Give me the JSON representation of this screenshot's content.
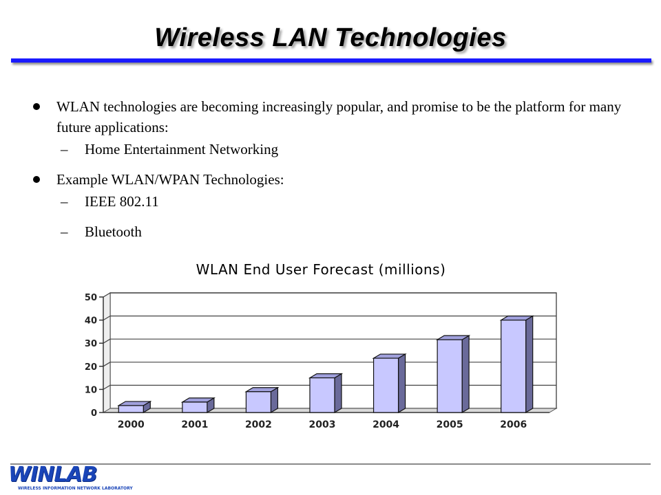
{
  "slide": {
    "title": "Wireless LAN Technologies"
  },
  "bullets": [
    {
      "text": "WLAN technologies are becoming increasingly popular, and promise to be the platform for many future applications:",
      "subitems": [
        "Home Entertainment Networking"
      ]
    },
    {
      "text": "Example WLAN/WPAN Technologies:",
      "subitems": [
        "IEEE 802.11",
        "Bluetooth"
      ]
    }
  ],
  "sub_dash": "–",
  "chart_data": {
    "type": "bar",
    "title": "WLAN End User Forecast (millions)",
    "categories": [
      "2000",
      "2001",
      "2002",
      "2003",
      "2004",
      "2005",
      "2006"
    ],
    "values": [
      3,
      4.5,
      9,
      15,
      23.5,
      31.5,
      40
    ],
    "ylim": [
      0,
      50
    ],
    "yticks": [
      "0",
      "10",
      "20",
      "30",
      "40",
      "50"
    ],
    "grid": true,
    "xlabel": "",
    "ylabel": ""
  },
  "colors": {
    "title_rule": "#1a1aff",
    "bar_front": "#c8c8ff",
    "bar_side": "#6a6a9a",
    "bar_top": "#a0a0dc",
    "logo": "#1a45b8"
  },
  "footer": {
    "logo_text": "WINLAB",
    "logo_tagline": "WIRELESS INFORMATION NETWORK LABORATORY"
  }
}
